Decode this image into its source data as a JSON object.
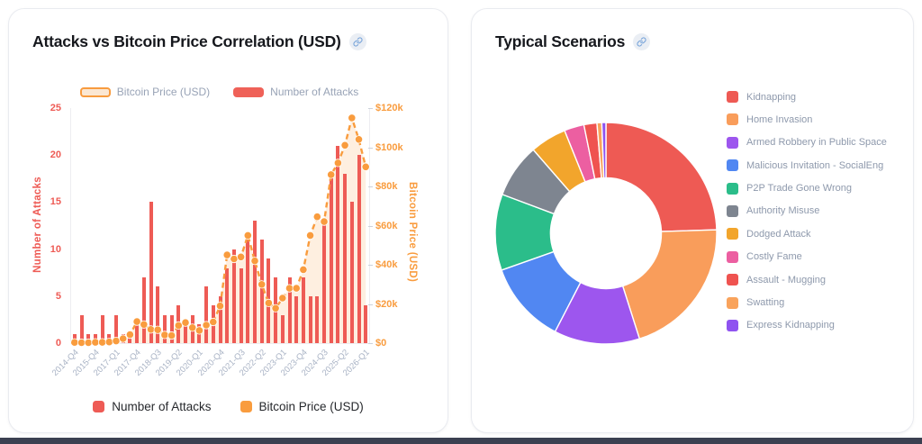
{
  "left_card": {
    "title": "Attacks vs Bitcoin Price Correlation (USD)",
    "icons": {
      "title_link": "link-icon"
    },
    "top_legend": [
      {
        "label": "Bitcoin Price (USD)",
        "swatch": "orange-outline"
      },
      {
        "label": "Number of Attacks",
        "swatch": "red-solid"
      }
    ],
    "bottom_legend": [
      {
        "label": "Number of Attacks",
        "color": "#ee5b55"
      },
      {
        "label": "Bitcoin Price (USD)",
        "color": "#f99c3e"
      }
    ],
    "chart_data": {
      "type": "bar+line",
      "categories": [
        "2014-Q4",
        "2015-Q1",
        "2015-Q2",
        "2015-Q4",
        "2016-Q1",
        "2016-Q3",
        "2017-Q1",
        "2017-Q2",
        "2017-Q3",
        "2017-Q4",
        "2018-Q1",
        "2018-Q2",
        "2018-Q3",
        "2018-Q4",
        "2019-Q1",
        "2019-Q2",
        "2019-Q3",
        "2019-Q4",
        "2020-Q1",
        "2020-Q2",
        "2020-Q3",
        "2020-Q4",
        "2021-Q1",
        "2021-Q2",
        "2021-Q3",
        "2021-Q4",
        "2022-Q1",
        "2022-Q2",
        "2022-Q3",
        "2022-Q4",
        "2023-Q1",
        "2023-Q2",
        "2023-Q3",
        "2023-Q4",
        "2024-Q1",
        "2024-Q2",
        "2024-Q3",
        "2024-Q4",
        "2025-Q1",
        "2025-Q2",
        "2025-Q3",
        "2025-Q4",
        "2026-Q1"
      ],
      "x_tick_every": 3,
      "series": [
        {
          "name": "Number of Attacks",
          "type": "bar",
          "axis": "left",
          "color": "#ee5b55",
          "values": [
            1,
            3,
            1,
            1,
            3,
            1,
            3,
            1,
            1,
            2,
            7,
            15,
            6,
            3,
            3,
            4,
            2,
            3,
            2,
            6,
            4,
            5,
            8,
            10,
            8,
            11,
            13,
            11,
            9,
            7,
            3,
            7,
            5,
            7,
            5,
            5,
            13,
            18,
            21,
            18,
            15,
            20,
            4
          ]
        },
        {
          "name": "Bitcoin Price (USD)",
          "type": "line",
          "axis": "right",
          "color": "#f99c3e",
          "area_fill": "rgba(250,160,70,0.17)",
          "values_usd": [
            370,
            240,
            250,
            400,
            420,
            600,
            1100,
            2300,
            4300,
            11000,
            9500,
            7000,
            6800,
            4200,
            3900,
            9000,
            10500,
            7900,
            6500,
            9200,
            10800,
            19000,
            45000,
            43000,
            44000,
            55000,
            42000,
            30000,
            20500,
            17800,
            23000,
            28000,
            28000,
            37500,
            55000,
            64500,
            62000,
            86000,
            92000,
            101000,
            115000,
            104000,
            90000
          ]
        }
      ],
      "left_axis": {
        "title": "Number of Attacks",
        "ticks": [
          0,
          5,
          10,
          15,
          20,
          25
        ],
        "max": 25,
        "color": "#ee5b55"
      },
      "right_axis": {
        "title": "Bitcoin Price (USD)",
        "tick_labels": [
          "$0",
          "$20k",
          "$40k",
          "$60k",
          "$80k",
          "$100k",
          "$120k"
        ],
        "max": 120000,
        "color": "#f99c3e"
      },
      "grid": false,
      "legend_position": "top"
    }
  },
  "right_card": {
    "title": "Typical Scenarios",
    "icons": {
      "title_link": "link-icon"
    },
    "chart_data": {
      "type": "pie",
      "donut": true,
      "legend_position": "right",
      "slices": [
        {
          "label": "Kidnapping",
          "color": "#ee5a54",
          "percent": 24.5
        },
        {
          "label": "Home Invasion",
          "color": "#f99d5b",
          "percent": 20.6
        },
        {
          "label": "Armed Robbery in Public Space",
          "color": "#9d56ee",
          "percent": 12.5
        },
        {
          "label": "Malicious Invitation - SocialEng",
          "color": "#5187f2",
          "percent": 12.0
        },
        {
          "label": "P2P Trade Gone Wrong",
          "color": "#2bbd8a",
          "percent": 11.1
        },
        {
          "label": "Authority Misuse",
          "color": "#7e8590",
          "percent": 7.9
        },
        {
          "label": "Dodged Attack",
          "color": "#f2a52c",
          "percent": 5.3
        },
        {
          "label": "Costly Fame",
          "color": "#ec5fa1",
          "percent": 2.9
        },
        {
          "label": "Assault - Mugging",
          "color": "#ef5350",
          "percent": 1.9
        },
        {
          "label": "Swatting",
          "color": "#f9a35c",
          "percent": 0.7
        },
        {
          "label": "Express Kidnapping",
          "color": "#8f53f0",
          "percent": 0.6
        }
      ]
    }
  }
}
